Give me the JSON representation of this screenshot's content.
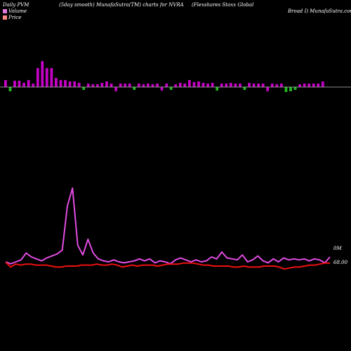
{
  "header": {
    "left": "Daily PVM",
    "middle": "(5day smooth) MunafaSutra(TM) charts for NVRA",
    "right_line1": "(Flexshares Stoxx Global",
    "right_line2": "Broad I) MunafaSutra.com"
  },
  "colors": {
    "up": "#c400c4",
    "down": "#22bb22",
    "volume_line": "#e24ce2",
    "price_line": "#ee1111",
    "volume_swatch": "#e07ae0",
    "price_swatch": "#ff8888"
  },
  "chart_data": {
    "type": "bar",
    "legend": {
      "volume": "Volume",
      "price": "Price"
    },
    "axis_labels": {
      "volume_marker": "0M",
      "price_marker": "68.00"
    },
    "bars": [
      {
        "v": 10,
        "up": true
      },
      {
        "v": -6,
        "up": false
      },
      {
        "v": 9,
        "up": true
      },
      {
        "v": 9,
        "up": true
      },
      {
        "v": 6,
        "up": true
      },
      {
        "v": 10,
        "up": true
      },
      {
        "v": 5,
        "up": true
      },
      {
        "v": 27,
        "up": true
      },
      {
        "v": 37,
        "up": true
      },
      {
        "v": 27,
        "up": true
      },
      {
        "v": 27,
        "up": true
      },
      {
        "v": 13,
        "up": true
      },
      {
        "v": 10,
        "up": true
      },
      {
        "v": 10,
        "up": true
      },
      {
        "v": 8,
        "up": true
      },
      {
        "v": 8,
        "up": true
      },
      {
        "v": 6,
        "up": true
      },
      {
        "v": -4,
        "up": false
      },
      {
        "v": 5,
        "up": true
      },
      {
        "v": 4,
        "up": true
      },
      {
        "v": 4,
        "up": true
      },
      {
        "v": 6,
        "up": true
      },
      {
        "v": 8,
        "up": true
      },
      {
        "v": 5,
        "up": true
      },
      {
        "v": -6,
        "up": true
      },
      {
        "v": 5,
        "up": true
      },
      {
        "v": 5,
        "up": true
      },
      {
        "v": 5,
        "up": true
      },
      {
        "v": -4,
        "up": false
      },
      {
        "v": 5,
        "up": true
      },
      {
        "v": 4,
        "up": true
      },
      {
        "v": 5,
        "up": true
      },
      {
        "v": 4,
        "up": true
      },
      {
        "v": 5,
        "up": true
      },
      {
        "v": -5,
        "up": true
      },
      {
        "v": 5,
        "up": true
      },
      {
        "v": -4,
        "up": false
      },
      {
        "v": 4,
        "up": true
      },
      {
        "v": 6,
        "up": true
      },
      {
        "v": 5,
        "up": true
      },
      {
        "v": 10,
        "up": true
      },
      {
        "v": 7,
        "up": true
      },
      {
        "v": 8,
        "up": true
      },
      {
        "v": 6,
        "up": true
      },
      {
        "v": 5,
        "up": true
      },
      {
        "v": 6,
        "up": true
      },
      {
        "v": -5,
        "up": false
      },
      {
        "v": 5,
        "up": true
      },
      {
        "v": 5,
        "up": true
      },
      {
        "v": 6,
        "up": true
      },
      {
        "v": 5,
        "up": true
      },
      {
        "v": 5,
        "up": true
      },
      {
        "v": -4,
        "up": false
      },
      {
        "v": 6,
        "up": true
      },
      {
        "v": 5,
        "up": true
      },
      {
        "v": 5,
        "up": true
      },
      {
        "v": 5,
        "up": true
      },
      {
        "v": -6,
        "up": true
      },
      {
        "v": 5,
        "up": true
      },
      {
        "v": 4,
        "up": true
      },
      {
        "v": 5,
        "up": true
      },
      {
        "v": -7,
        "up": false
      },
      {
        "v": -6,
        "up": false
      },
      {
        "v": -4,
        "up": false
      },
      {
        "v": 4,
        "up": true
      },
      {
        "v": 5,
        "up": true
      },
      {
        "v": 5,
        "up": true
      },
      {
        "v": 5,
        "up": true
      },
      {
        "v": 5,
        "up": true
      },
      {
        "v": 8,
        "up": true
      }
    ],
    "volume": [
      5,
      3,
      5,
      7,
      14,
      10,
      8,
      6,
      9,
      11,
      13,
      17,
      62,
      80,
      22,
      12,
      28,
      14,
      8,
      6,
      5,
      7,
      5,
      4,
      5,
      6,
      8,
      6,
      8,
      4,
      6,
      5,
      3,
      7,
      9,
      7,
      5,
      7,
      5,
      6,
      10,
      8,
      15,
      9,
      8,
      7,
      12,
      5,
      7,
      11,
      6,
      4,
      8,
      5,
      9,
      7,
      8,
      7,
      8,
      6,
      8,
      7,
      4,
      10
    ],
    "price": [
      9,
      4,
      7,
      6,
      7,
      7,
      6,
      6,
      6,
      5,
      4,
      4,
      5,
      5,
      5,
      6,
      6,
      6,
      7,
      6,
      6,
      7,
      6,
      4,
      5,
      6,
      5,
      6,
      6,
      6,
      5,
      6,
      7,
      7,
      7,
      8,
      8,
      8,
      7,
      6,
      6,
      5,
      5,
      5,
      5,
      4,
      4,
      5,
      4,
      4,
      4,
      5,
      5,
      5,
      4,
      2,
      3,
      4,
      4,
      5,
      6,
      6,
      7,
      8,
      8
    ]
  }
}
